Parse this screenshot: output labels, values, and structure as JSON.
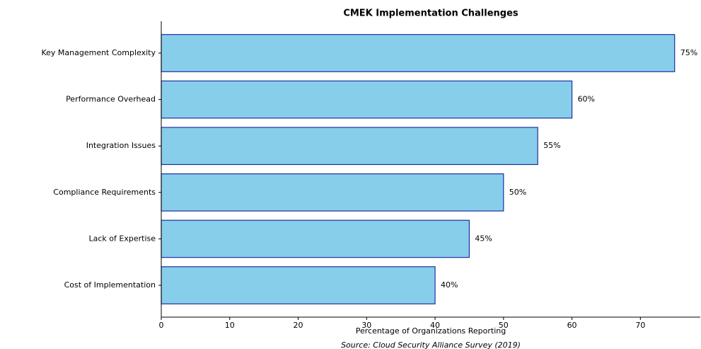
{
  "chart_data": {
    "type": "barh",
    "title": "CMEK Implementation Challenges",
    "xlabel": "Percentage of Organizations Reporting",
    "source": "Source: Cloud Security Alliance Survey (2019)",
    "categories": [
      "Key Management Complexity",
      "Performance Overhead",
      "Integration Issues",
      "Compliance Requirements",
      "Lack of Expertise",
      "Cost of Implementation"
    ],
    "values": [
      75,
      60,
      55,
      50,
      45,
      40
    ],
    "value_labels": [
      "75%",
      "60%",
      "55%",
      "50%",
      "45%",
      "40%"
    ],
    "color": "#87ceeb",
    "edgecolor": "#1f2f9f",
    "xlim": [
      0,
      78.75
    ],
    "xticks": [
      0,
      10,
      20,
      30,
      40,
      50,
      60,
      70
    ]
  }
}
